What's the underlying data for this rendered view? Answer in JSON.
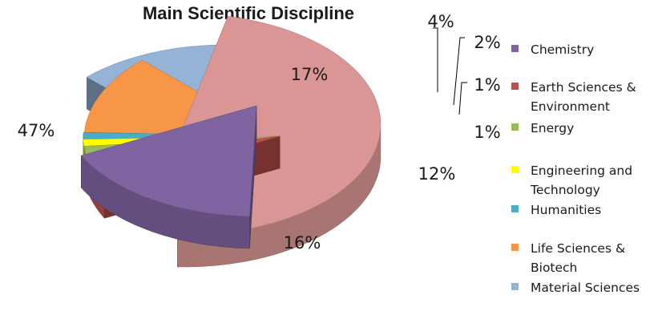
{
  "chart_data": {
    "type": "pie",
    "title": "Main Scientific Discipline",
    "legend_position": "right",
    "slices": [
      {
        "name": "Chemistry",
        "value": 17,
        "label": "17%",
        "color": "#8064a2"
      },
      {
        "name": "Earth Sciences & Environment",
        "value": 4,
        "label": "4%",
        "color": "#c0504d"
      },
      {
        "name": "Energy",
        "value": 2,
        "label": "2%",
        "color": "#9bbb59"
      },
      {
        "name": "Engineering and Technology",
        "value": 1,
        "label": "1%",
        "color": "#ffff00"
      },
      {
        "name": "Humanities",
        "value": 1,
        "label": "1%",
        "color": "#4bacc6"
      },
      {
        "name": "Life Sciences & Biotech",
        "value": 12,
        "label": "12%",
        "color": "#f79646"
      },
      {
        "name": "Material Sciences",
        "value": 16,
        "label": "16%",
        "color": "#95b3d7"
      },
      {
        "name": "",
        "value": 47,
        "label": "47%",
        "color": "#d99694"
      }
    ],
    "legend": [
      {
        "lines": [
          "Chemistry"
        ],
        "color": "#8064a2"
      },
      {
        "lines": [
          "Earth Sciences &",
          "Environment"
        ],
        "color": "#c0504d"
      },
      {
        "lines": [
          "Energy"
        ],
        "color": "#9bbb59"
      },
      {
        "lines": [
          "Engineering and",
          "Technology"
        ],
        "color": "#ffff00"
      },
      {
        "lines": [
          "Humanities"
        ],
        "color": "#4bacc6"
      },
      {
        "lines": [
          "Life Sciences &",
          "Biotech"
        ],
        "color": "#f79646"
      },
      {
        "lines": [
          "Material Sciences"
        ],
        "color": "#95b3d7"
      }
    ]
  }
}
